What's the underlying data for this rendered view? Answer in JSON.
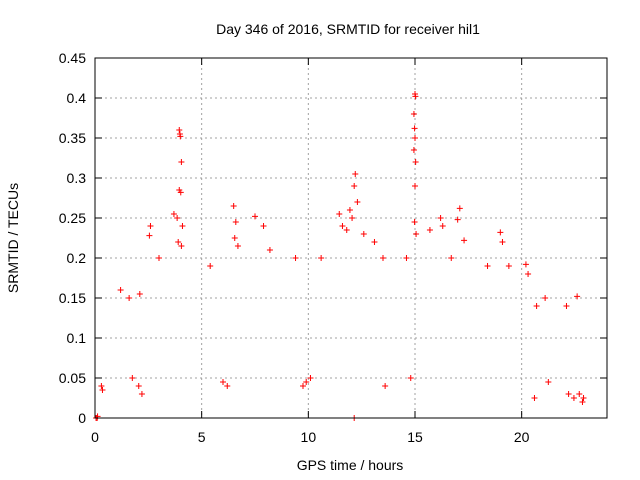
{
  "chart_data": {
    "type": "scatter",
    "title": "Day 346 of 2016, SRMTID for receiver hil1",
    "xlabel": "GPS time / hours",
    "ylabel": "SRMTID / TECUs",
    "xlim": [
      0,
      24
    ],
    "ylim": [
      0,
      0.45
    ],
    "xticks": [
      0,
      5,
      10,
      15,
      20
    ],
    "xtick_labels": [
      "0",
      "5",
      "10",
      "15",
      "20"
    ],
    "yticks": [
      0,
      0.05,
      0.1,
      0.15,
      0.2,
      0.25,
      0.3,
      0.35,
      0.4,
      0.45
    ],
    "ytick_labels": [
      "0",
      "0.05",
      "0.1",
      "0.15",
      "0.2",
      "0.25",
      "0.3",
      "0.35",
      "0.4",
      "0.45"
    ],
    "grid": true,
    "marker": "+",
    "color": "#ff0000",
    "series": [
      {
        "name": "hil1",
        "points": [
          [
            0.05,
            0.0
          ],
          [
            0.1,
            0.0
          ],
          [
            0.12,
            0.002
          ],
          [
            12.15,
            0.0
          ],
          [
            3.95,
            0.36
          ],
          [
            3.98,
            0.355
          ],
          [
            4.0,
            0.352
          ],
          [
            4.05,
            0.32
          ],
          [
            3.95,
            0.285
          ],
          [
            4.02,
            0.282
          ],
          [
            3.7,
            0.255
          ],
          [
            3.85,
            0.25
          ],
          [
            4.1,
            0.24
          ],
          [
            3.9,
            0.22
          ],
          [
            4.05,
            0.215
          ],
          [
            15.0,
            0.405
          ],
          [
            15.02,
            0.402
          ],
          [
            14.95,
            0.38
          ],
          [
            14.98,
            0.362
          ],
          [
            15.0,
            0.35
          ],
          [
            14.95,
            0.335
          ],
          [
            15.03,
            0.32
          ],
          [
            15.0,
            0.29
          ],
          [
            14.98,
            0.245
          ],
          [
            15.05,
            0.23
          ],
          [
            12.2,
            0.305
          ],
          [
            12.15,
            0.29
          ],
          [
            12.3,
            0.27
          ],
          [
            11.95,
            0.26
          ],
          [
            12.05,
            0.25
          ],
          [
            11.6,
            0.24
          ],
          [
            11.8,
            0.235
          ],
          [
            12.6,
            0.23
          ],
          [
            13.1,
            0.22
          ],
          [
            11.45,
            0.255
          ],
          [
            6.5,
            0.265
          ],
          [
            6.6,
            0.245
          ],
          [
            7.5,
            0.252
          ],
          [
            7.9,
            0.24
          ],
          [
            2.6,
            0.24
          ],
          [
            2.55,
            0.228
          ],
          [
            6.55,
            0.225
          ],
          [
            6.7,
            0.215
          ],
          [
            17.1,
            0.262
          ],
          [
            17.0,
            0.248
          ],
          [
            16.2,
            0.25
          ],
          [
            16.3,
            0.24
          ],
          [
            15.7,
            0.235
          ],
          [
            17.3,
            0.222
          ],
          [
            19.0,
            0.232
          ],
          [
            19.1,
            0.22
          ],
          [
            20.2,
            0.192
          ],
          [
            20.3,
            0.18
          ],
          [
            22.6,
            0.152
          ],
          [
            3.0,
            0.2
          ],
          [
            5.4,
            0.19
          ],
          [
            8.2,
            0.21
          ],
          [
            9.4,
            0.2
          ],
          [
            10.6,
            0.2
          ],
          [
            13.5,
            0.2
          ],
          [
            14.6,
            0.2
          ],
          [
            16.7,
            0.2
          ],
          [
            18.4,
            0.19
          ],
          [
            19.4,
            0.19
          ],
          [
            21.1,
            0.15
          ],
          [
            1.2,
            0.16
          ],
          [
            1.6,
            0.15
          ],
          [
            2.1,
            0.155
          ],
          [
            20.7,
            0.14
          ],
          [
            22.1,
            0.14
          ],
          [
            1.75,
            0.05
          ],
          [
            2.05,
            0.04
          ],
          [
            2.2,
            0.03
          ],
          [
            6.2,
            0.04
          ],
          [
            6.0,
            0.045
          ],
          [
            9.75,
            0.04
          ],
          [
            9.9,
            0.045
          ],
          [
            10.1,
            0.05
          ],
          [
            13.6,
            0.04
          ],
          [
            14.8,
            0.05
          ],
          [
            21.25,
            0.045
          ],
          [
            22.2,
            0.03
          ],
          [
            22.45,
            0.025
          ],
          [
            22.7,
            0.03
          ],
          [
            22.85,
            0.02
          ],
          [
            22.9,
            0.025
          ],
          [
            20.6,
            0.025
          ],
          [
            0.3,
            0.04
          ],
          [
            0.35,
            0.035
          ]
        ]
      }
    ]
  }
}
